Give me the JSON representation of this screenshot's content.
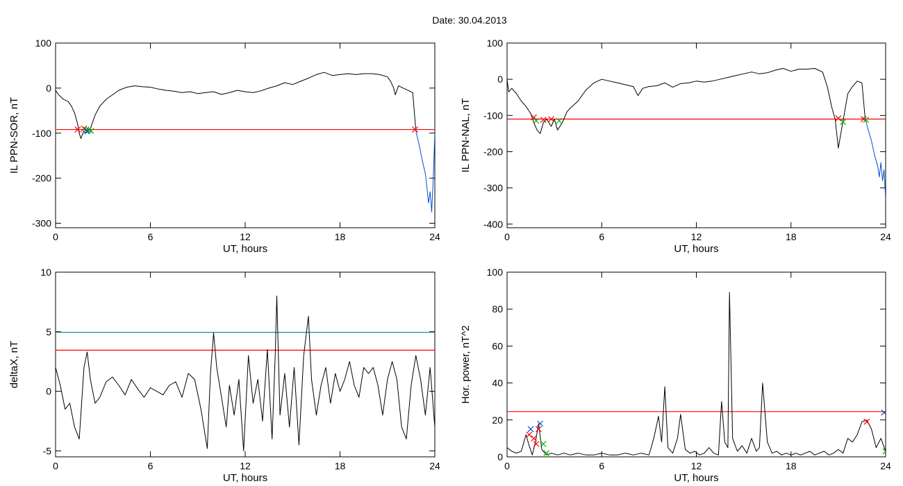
{
  "figure": {
    "title": "Date:  30.04.2013",
    "colors": {
      "line": "#000000",
      "red": "#ff0000",
      "teal": "#008080",
      "blue": "#0050d0",
      "green": "#00b000",
      "marker_blue": "#0050d0"
    }
  },
  "chart_data": [
    {
      "id": "p1",
      "type": "line",
      "xlabel": "UT, hours",
      "ylabel": "IL PPN-SOR, nT",
      "xlim": [
        0,
        24
      ],
      "ylim": [
        -310,
        100
      ],
      "xticks": [
        0,
        6,
        12,
        18,
        24
      ],
      "yticks": [
        100,
        0,
        -100,
        -200,
        -300
      ],
      "threshold_lines": [
        {
          "y": -92,
          "color": "red"
        }
      ],
      "series": [
        {
          "color": "black",
          "x": [
            0,
            0.2,
            0.5,
            0.8,
            1.0,
            1.2,
            1.4,
            1.5,
            1.6,
            1.7,
            1.8,
            1.9,
            2.0,
            2.1,
            2.2,
            2.3,
            2.5,
            2.8,
            3.2,
            3.6,
            4.0,
            4.5,
            5.0,
            5.5,
            6.0,
            6.5,
            7.0,
            7.5,
            8.0,
            8.5,
            9.0,
            9.5,
            10.0,
            10.5,
            11.0,
            11.5,
            12.0,
            12.5,
            13.0,
            13.5,
            14.0,
            14.5,
            15.0,
            15.5,
            16.0,
            16.5,
            17.0,
            17.5,
            18.0,
            18.5,
            19.0,
            19.5,
            20.0,
            20.5,
            21.0,
            21.2,
            21.4,
            21.5,
            21.7,
            22.0,
            22.3,
            22.6,
            22.8
          ],
          "y": [
            -5,
            -15,
            -25,
            -30,
            -40,
            -55,
            -80,
            -100,
            -112,
            -103,
            -95,
            -100,
            -98,
            -93,
            -90,
            -80,
            -60,
            -40,
            -25,
            -15,
            -5,
            2,
            5,
            3,
            2,
            -2,
            -5,
            -7,
            -10,
            -8,
            -12,
            -10,
            -8,
            -14,
            -10,
            -5,
            -8,
            -10,
            -6,
            0,
            5,
            12,
            8,
            15,
            22,
            30,
            35,
            28,
            30,
            32,
            30,
            32,
            32,
            30,
            25,
            15,
            0,
            -15,
            5,
            0,
            -5,
            -10,
            -95
          ]
        },
        {
          "color": "blue",
          "x": [
            22.8,
            23.0,
            23.2,
            23.4,
            23.5,
            23.6,
            23.7,
            23.8,
            23.9,
            24.0
          ],
          "y": [
            -95,
            -125,
            -160,
            -190,
            -220,
            -255,
            -230,
            -275,
            -200,
            -100
          ]
        }
      ],
      "markers": [
        {
          "x": 1.4,
          "y": -92,
          "color": "red"
        },
        {
          "x": 1.8,
          "y": -90,
          "color": "red"
        },
        {
          "x": 1.95,
          "y": -92,
          "color": "green"
        },
        {
          "x": 2.1,
          "y": -93,
          "color": "green"
        },
        {
          "x": 2.25,
          "y": -95,
          "color": "green"
        },
        {
          "x": 2.0,
          "y": -96,
          "color": "blue"
        },
        {
          "x": 22.75,
          "y": -92,
          "color": "red"
        }
      ]
    },
    {
      "id": "p2",
      "type": "line",
      "xlabel": "UT, hours",
      "ylabel": "IL PPN-NAL, nT",
      "xlim": [
        0,
        24
      ],
      "ylim": [
        -410,
        100
      ],
      "xticks": [
        0,
        6,
        12,
        18,
        24
      ],
      "yticks": [
        100,
        0,
        -100,
        -200,
        -300,
        -400
      ],
      "threshold_lines": [
        {
          "y": -110,
          "color": "red"
        }
      ],
      "series": [
        {
          "color": "black",
          "x": [
            0,
            0.1,
            0.3,
            0.6,
            0.9,
            1.2,
            1.5,
            1.7,
            1.9,
            2.1,
            2.3,
            2.5,
            2.8,
            3.0,
            3.2,
            3.5,
            3.8,
            4.0,
            4.5,
            5.0,
            5.5,
            6.0,
            6.5,
            7.0,
            7.5,
            8.0,
            8.3,
            8.6,
            9.0,
            9.5,
            10.0,
            10.5,
            11.0,
            11.5,
            12.0,
            12.5,
            13.0,
            13.5,
            14.0,
            14.5,
            15.0,
            15.5,
            16.0,
            16.5,
            17.0,
            17.5,
            18.0,
            18.5,
            19.0,
            19.5,
            20.0,
            20.3,
            20.6,
            20.8,
            21.0,
            21.2,
            21.4,
            21.6,
            21.9,
            22.2,
            22.5,
            22.7
          ],
          "y": [
            0,
            -35,
            -25,
            -40,
            -60,
            -75,
            -95,
            -120,
            -140,
            -150,
            -120,
            -110,
            -130,
            -110,
            -140,
            -120,
            -90,
            -80,
            -60,
            -30,
            -10,
            0,
            -5,
            -10,
            -15,
            -20,
            -45,
            -25,
            -20,
            -18,
            -10,
            -22,
            -12,
            -10,
            -5,
            -8,
            -5,
            0,
            5,
            10,
            15,
            20,
            15,
            18,
            25,
            30,
            22,
            28,
            28,
            30,
            20,
            -20,
            -80,
            -110,
            -190,
            -140,
            -90,
            -40,
            -20,
            -5,
            -10,
            -108
          ]
        },
        {
          "color": "blue",
          "x": [
            22.7,
            22.9,
            23.1,
            23.3,
            23.5,
            23.6,
            23.7,
            23.8,
            23.9,
            24.0
          ],
          "y": [
            -108,
            -140,
            -170,
            -210,
            -240,
            -270,
            -230,
            -280,
            -250,
            -330
          ]
        }
      ],
      "markers": [
        {
          "x": 1.7,
          "y": -105,
          "color": "red"
        },
        {
          "x": 1.85,
          "y": -115,
          "color": "green"
        },
        {
          "x": 2.3,
          "y": -112,
          "color": "red"
        },
        {
          "x": 2.8,
          "y": -110,
          "color": "red"
        },
        {
          "x": 3.3,
          "y": -115,
          "color": "green"
        },
        {
          "x": 21.0,
          "y": -108,
          "color": "red"
        },
        {
          "x": 21.3,
          "y": -118,
          "color": "green"
        },
        {
          "x": 22.6,
          "y": -110,
          "color": "red"
        },
        {
          "x": 22.75,
          "y": -112,
          "color": "green"
        }
      ]
    },
    {
      "id": "p3",
      "type": "line",
      "xlabel": "UT, hours",
      "ylabel": "deltaX, nT",
      "xlim": [
        0,
        24
      ],
      "ylim": [
        -5.5,
        10
      ],
      "xticks": [
        0,
        6,
        12,
        18,
        24
      ],
      "yticks": [
        10,
        5,
        0,
        -5
      ],
      "threshold_lines": [
        {
          "y": 4.95,
          "color": "teal"
        },
        {
          "y": 3.45,
          "color": "red"
        }
      ],
      "series": [
        {
          "color": "black",
          "x": [
            0,
            0.3,
            0.6,
            0.9,
            1.2,
            1.5,
            1.8,
            2.0,
            2.2,
            2.5,
            2.8,
            3.2,
            3.6,
            4.0,
            4.4,
            4.8,
            5.2,
            5.6,
            6.0,
            6.4,
            6.8,
            7.2,
            7.6,
            8.0,
            8.4,
            8.8,
            9.2,
            9.6,
            9.8,
            10.0,
            10.2,
            10.5,
            10.8,
            11.0,
            11.3,
            11.6,
            11.9,
            12.2,
            12.5,
            12.8,
            13.1,
            13.4,
            13.7,
            13.9,
            14.0,
            14.2,
            14.5,
            14.8,
            15.1,
            15.4,
            15.7,
            16.0,
            16.2,
            16.5,
            16.8,
            17.1,
            17.4,
            17.7,
            18.0,
            18.3,
            18.6,
            18.9,
            19.2,
            19.5,
            19.8,
            20.1,
            20.4,
            20.7,
            21.0,
            21.3,
            21.6,
            21.9,
            22.2,
            22.5,
            22.8,
            23.1,
            23.4,
            23.7,
            24.0
          ],
          "y": [
            2.0,
            0.5,
            -1.5,
            -1.0,
            -3.0,
            -4.0,
            2.0,
            3.3,
            1.0,
            -1.0,
            -0.5,
            0.8,
            1.2,
            0.5,
            -0.3,
            1.0,
            0.2,
            -0.5,
            0.3,
            0.0,
            -0.3,
            0.5,
            0.8,
            -0.5,
            1.5,
            1.0,
            -1.5,
            -4.8,
            1.5,
            4.9,
            2.0,
            -0.5,
            -3.0,
            0.5,
            -2.0,
            1.0,
            -5.0,
            3.0,
            -1.0,
            1.0,
            -2.5,
            3.5,
            -4.0,
            3.0,
            8.0,
            -2.0,
            1.5,
            -3.0,
            2.0,
            -4.5,
            3.0,
            6.3,
            1.0,
            -2.0,
            0.5,
            2.0,
            -1.0,
            1.5,
            0.0,
            1.0,
            2.5,
            0.5,
            -0.5,
            2.0,
            1.5,
            2.0,
            0.5,
            -2.0,
            1.0,
            2.5,
            1.0,
            -3.0,
            -4.0,
            0.5,
            3.0,
            1.0,
            -2.0,
            2.0,
            -3.0
          ]
        }
      ],
      "markers": []
    },
    {
      "id": "p4",
      "type": "line",
      "xlabel": "UT, hours",
      "ylabel": "Hor. power, nT^2",
      "xlim": [
        0,
        24
      ],
      "ylim": [
        0,
        100
      ],
      "xticks": [
        0,
        6,
        12,
        18,
        24
      ],
      "yticks": [
        100,
        80,
        60,
        40,
        20,
        0
      ],
      "threshold_lines": [
        {
          "y": 24.5,
          "color": "red"
        }
      ],
      "series": [
        {
          "color": "black",
          "x": [
            0,
            0.3,
            0.6,
            0.9,
            1.2,
            1.4,
            1.6,
            1.8,
            2.0,
            2.2,
            2.5,
            2.8,
            3.2,
            3.6,
            4.0,
            4.5,
            5.0,
            5.5,
            6.0,
            6.5,
            7.0,
            7.5,
            8.0,
            8.5,
            9.0,
            9.3,
            9.6,
            9.8,
            10.0,
            10.2,
            10.5,
            10.8,
            11.0,
            11.3,
            11.6,
            11.9,
            12.2,
            12.5,
            12.8,
            13.1,
            13.4,
            13.6,
            13.8,
            14.0,
            14.1,
            14.3,
            14.6,
            14.9,
            15.2,
            15.5,
            15.8,
            16.0,
            16.2,
            16.5,
            16.8,
            17.1,
            17.4,
            17.7,
            18.0,
            18.3,
            18.6,
            18.9,
            19.2,
            19.5,
            19.8,
            20.1,
            20.4,
            20.7,
            21.0,
            21.3,
            21.6,
            21.9,
            22.2,
            22.5,
            22.8,
            23.1,
            23.4,
            23.7,
            24.0
          ],
          "y": [
            5,
            3,
            2,
            3,
            12,
            6,
            1,
            8,
            18,
            4,
            1,
            2,
            1,
            2,
            1,
            2,
            1,
            1,
            2,
            1,
            1,
            2,
            1,
            2,
            1,
            10,
            22,
            8,
            38,
            5,
            2,
            10,
            23,
            4,
            2,
            3,
            1,
            2,
            5,
            2,
            1,
            30,
            8,
            5,
            89,
            10,
            3,
            6,
            2,
            10,
            3,
            5,
            40,
            8,
            2,
            3,
            1,
            2,
            1,
            2,
            1,
            2,
            3,
            1,
            2,
            3,
            1,
            2,
            4,
            2,
            10,
            8,
            12,
            19,
            20,
            15,
            5,
            10,
            3
          ]
        }
      ],
      "markers": [
        {
          "x": 1.4,
          "y": 12,
          "color": "red"
        },
        {
          "x": 1.5,
          "y": 15,
          "color": "blue"
        },
        {
          "x": 1.7,
          "y": 10,
          "color": "red"
        },
        {
          "x": 1.85,
          "y": 7,
          "color": "red"
        },
        {
          "x": 2.0,
          "y": 15,
          "color": "red"
        },
        {
          "x": 2.1,
          "y": 18,
          "color": "blue"
        },
        {
          "x": 2.3,
          "y": 7,
          "color": "green"
        },
        {
          "x": 2.5,
          "y": 2,
          "color": "green"
        },
        {
          "x": 22.8,
          "y": 19,
          "color": "red"
        },
        {
          "x": 23.9,
          "y": 24,
          "color": "blue"
        },
        {
          "x": 24.0,
          "y": 3,
          "color": "green"
        }
      ]
    }
  ]
}
